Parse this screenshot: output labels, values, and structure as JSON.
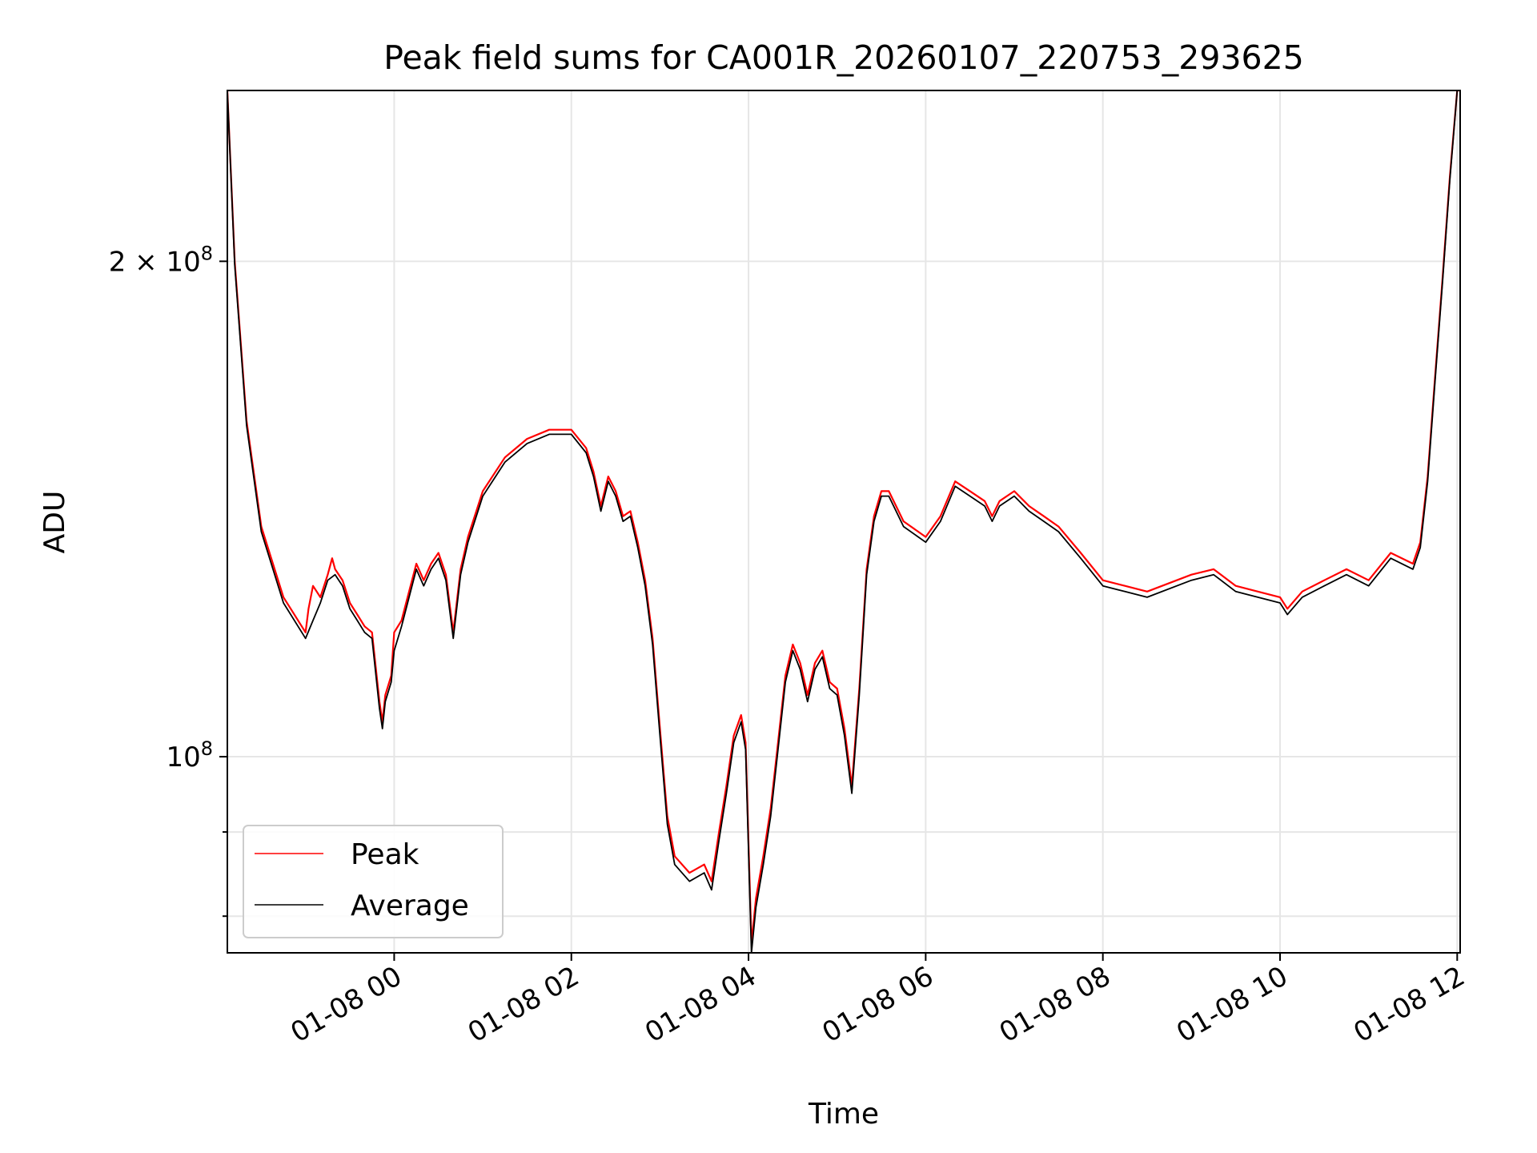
{
  "chart_data": {
    "type": "line",
    "title": "Peak field sums for CA001R_20260107_220753_293625",
    "xlabel": "Time",
    "ylabel": "ADU",
    "yscale": "log",
    "grid": true,
    "legend_placement": "lower-left",
    "xlim": [
      "2026-01-07 22:07",
      "2026-01-08 12:02"
    ],
    "ylim": [
      76000000,
      254000000
    ],
    "x_ticks": [
      {
        "value": "2026-01-08 00:00",
        "label": "01-08 00"
      },
      {
        "value": "2026-01-08 02:00",
        "label": "01-08 02"
      },
      {
        "value": "2026-01-08 04:00",
        "label": "01-08 04"
      },
      {
        "value": "2026-01-08 06:00",
        "label": "01-08 06"
      },
      {
        "value": "2026-01-08 08:00",
        "label": "01-08 08"
      },
      {
        "value": "2026-01-08 10:00",
        "label": "01-08 10"
      },
      {
        "value": "2026-01-08 12:00",
        "label": "01-08 12"
      }
    ],
    "y_major_ticks": [
      {
        "value": 200000000,
        "label_base": "2 × 10",
        "label_exp": "8"
      },
      {
        "value": 100000000,
        "label_base": "10",
        "label_exp": "8"
      }
    ],
    "y_minor_ticks": [
      90000000,
      80000000
    ],
    "series": [
      {
        "name": "Peak",
        "color": "#ff0000",
        "x": [
          "2026-01-07 22:07",
          "2026-01-07 22:12",
          "2026-01-07 22:20",
          "2026-01-07 22:30",
          "2026-01-07 22:45",
          "2026-01-07 23:00",
          "2026-01-07 23:02",
          "2026-01-07 23:05",
          "2026-01-07 23:10",
          "2026-01-07 23:15",
          "2026-01-07 23:18",
          "2026-01-07 23:20",
          "2026-01-07 23:25",
          "2026-01-07 23:30",
          "2026-01-07 23:35",
          "2026-01-07 23:40",
          "2026-01-07 23:45",
          "2026-01-07 23:50",
          "2026-01-07 23:52",
          "2026-01-07 23:54",
          "2026-01-07 23:58",
          "2026-01-08 00:00",
          "2026-01-08 00:05",
          "2026-01-08 00:15",
          "2026-01-08 00:20",
          "2026-01-08 00:25",
          "2026-01-08 00:30",
          "2026-01-08 00:35",
          "2026-01-08 00:40",
          "2026-01-08 00:45",
          "2026-01-08 00:50",
          "2026-01-08 01:00",
          "2026-01-08 01:15",
          "2026-01-08 01:30",
          "2026-01-08 01:45",
          "2026-01-08 02:00",
          "2026-01-08 02:10",
          "2026-01-08 02:15",
          "2026-01-08 02:20",
          "2026-01-08 02:25",
          "2026-01-08 02:30",
          "2026-01-08 02:35",
          "2026-01-08 02:40",
          "2026-01-08 02:45",
          "2026-01-08 02:50",
          "2026-01-08 02:55",
          "2026-01-08 03:00",
          "2026-01-08 03:05",
          "2026-01-08 03:10",
          "2026-01-08 03:20",
          "2026-01-08 03:30",
          "2026-01-08 03:35",
          "2026-01-08 03:40",
          "2026-01-08 03:45",
          "2026-01-08 03:50",
          "2026-01-08 03:55",
          "2026-01-08 03:58",
          "2026-01-08 04:02",
          "2026-01-08 04:05",
          "2026-01-08 04:10",
          "2026-01-08 04:15",
          "2026-01-08 04:20",
          "2026-01-08 04:25",
          "2026-01-08 04:30",
          "2026-01-08 04:35",
          "2026-01-08 04:40",
          "2026-01-08 04:45",
          "2026-01-08 04:50",
          "2026-01-08 04:55",
          "2026-01-08 05:00",
          "2026-01-08 05:05",
          "2026-01-08 05:10",
          "2026-01-08 05:15",
          "2026-01-08 05:20",
          "2026-01-08 05:25",
          "2026-01-08 05:30",
          "2026-01-08 05:35",
          "2026-01-08 05:45",
          "2026-01-08 06:00",
          "2026-01-08 06:10",
          "2026-01-08 06:20",
          "2026-01-08 06:30",
          "2026-01-08 06:40",
          "2026-01-08 06:45",
          "2026-01-08 06:50",
          "2026-01-08 07:00",
          "2026-01-08 07:10",
          "2026-01-08 07:20",
          "2026-01-08 07:30",
          "2026-01-08 07:45",
          "2026-01-08 08:00",
          "2026-01-08 08:15",
          "2026-01-08 08:30",
          "2026-01-08 09:00",
          "2026-01-08 09:15",
          "2026-01-08 09:30",
          "2026-01-08 09:45",
          "2026-01-08 10:00",
          "2026-01-08 10:05",
          "2026-01-08 10:15",
          "2026-01-08 10:30",
          "2026-01-08 10:45",
          "2026-01-08 11:00",
          "2026-01-08 11:15",
          "2026-01-08 11:30",
          "2026-01-08 11:35",
          "2026-01-08 11:40",
          "2026-01-08 11:45",
          "2026-01-08 11:50",
          "2026-01-08 11:55",
          "2026-01-08 12:00",
          "2026-01-08 12:02"
        ],
        "values": [
          254000000,
          200000000,
          160000000,
          138000000,
          125000000,
          119000000,
          123000000,
          127000000,
          125000000,
          129000000,
          132000000,
          130000000,
          128000000,
          124000000,
          122000000,
          120000000,
          119000000,
          108000000,
          105000000,
          109000000,
          112000000,
          119000000,
          121000000,
          131000000,
          128000000,
          131000000,
          133000000,
          129000000,
          119000000,
          130000000,
          136000000,
          145000000,
          152000000,
          156000000,
          158000000,
          158000000,
          154000000,
          149000000,
          142000000,
          148000000,
          145000000,
          140000000,
          141000000,
          135000000,
          128000000,
          118000000,
          104000000,
          92000000,
          87000000,
          85000000,
          86000000,
          84000000,
          90000000,
          96000000,
          103000000,
          106000000,
          102000000,
          77000000,
          82000000,
          87000000,
          93000000,
          102000000,
          112000000,
          117000000,
          114000000,
          109000000,
          114000000,
          116000000,
          111000000,
          110000000,
          104000000,
          96000000,
          110000000,
          130000000,
          140000000,
          145000000,
          145000000,
          139000000,
          136000000,
          140000000,
          147000000,
          145000000,
          143000000,
          140000000,
          143000000,
          145000000,
          142000000,
          140000000,
          138000000,
          133000000,
          128000000,
          127000000,
          126000000,
          129000000,
          130000000,
          127000000,
          126000000,
          125000000,
          123000000,
          126000000,
          128000000,
          130000000,
          128000000,
          133000000,
          131000000,
          135000000,
          148000000,
          170000000,
          195000000,
          225000000,
          254000000,
          254000000
        ]
      },
      {
        "name": "Average",
        "color": "#000000",
        "x": [
          "2026-01-07 22:07",
          "2026-01-07 22:12",
          "2026-01-07 22:20",
          "2026-01-07 22:30",
          "2026-01-07 22:45",
          "2026-01-07 23:00",
          "2026-01-07 23:05",
          "2026-01-07 23:10",
          "2026-01-07 23:15",
          "2026-01-07 23:20",
          "2026-01-07 23:25",
          "2026-01-07 23:30",
          "2026-01-07 23:35",
          "2026-01-07 23:40",
          "2026-01-07 23:45",
          "2026-01-07 23:50",
          "2026-01-07 23:52",
          "2026-01-07 23:54",
          "2026-01-07 23:58",
          "2026-01-08 00:00",
          "2026-01-08 00:05",
          "2026-01-08 00:15",
          "2026-01-08 00:20",
          "2026-01-08 00:25",
          "2026-01-08 00:30",
          "2026-01-08 00:35",
          "2026-01-08 00:40",
          "2026-01-08 00:45",
          "2026-01-08 00:50",
          "2026-01-08 01:00",
          "2026-01-08 01:15",
          "2026-01-08 01:30",
          "2026-01-08 01:45",
          "2026-01-08 02:00",
          "2026-01-08 02:10",
          "2026-01-08 02:15",
          "2026-01-08 02:20",
          "2026-01-08 02:25",
          "2026-01-08 02:30",
          "2026-01-08 02:35",
          "2026-01-08 02:40",
          "2026-01-08 02:45",
          "2026-01-08 02:50",
          "2026-01-08 02:55",
          "2026-01-08 03:00",
          "2026-01-08 03:05",
          "2026-01-08 03:10",
          "2026-01-08 03:20",
          "2026-01-08 03:30",
          "2026-01-08 03:35",
          "2026-01-08 03:40",
          "2026-01-08 03:45",
          "2026-01-08 03:50",
          "2026-01-08 03:55",
          "2026-01-08 03:58",
          "2026-01-08 04:02",
          "2026-01-08 04:05",
          "2026-01-08 04:10",
          "2026-01-08 04:15",
          "2026-01-08 04:20",
          "2026-01-08 04:25",
          "2026-01-08 04:30",
          "2026-01-08 04:35",
          "2026-01-08 04:40",
          "2026-01-08 04:45",
          "2026-01-08 04:50",
          "2026-01-08 04:55",
          "2026-01-08 05:00",
          "2026-01-08 05:05",
          "2026-01-08 05:10",
          "2026-01-08 05:15",
          "2026-01-08 05:20",
          "2026-01-08 05:25",
          "2026-01-08 05:30",
          "2026-01-08 05:35",
          "2026-01-08 05:45",
          "2026-01-08 06:00",
          "2026-01-08 06:10",
          "2026-01-08 06:20",
          "2026-01-08 06:30",
          "2026-01-08 06:40",
          "2026-01-08 06:45",
          "2026-01-08 06:50",
          "2026-01-08 07:00",
          "2026-01-08 07:10",
          "2026-01-08 07:20",
          "2026-01-08 07:30",
          "2026-01-08 07:45",
          "2026-01-08 08:00",
          "2026-01-08 08:15",
          "2026-01-08 08:30",
          "2026-01-08 09:00",
          "2026-01-08 09:15",
          "2026-01-08 09:30",
          "2026-01-08 09:45",
          "2026-01-08 10:00",
          "2026-01-08 10:05",
          "2026-01-08 10:15",
          "2026-01-08 10:30",
          "2026-01-08 10:45",
          "2026-01-08 11:00",
          "2026-01-08 11:15",
          "2026-01-08 11:30",
          "2026-01-08 11:35",
          "2026-01-08 11:40",
          "2026-01-08 11:45",
          "2026-01-08 11:50",
          "2026-01-08 11:55",
          "2026-01-08 12:00",
          "2026-01-08 12:02"
        ],
        "values": [
          254000000,
          199000000,
          159000000,
          137000000,
          124000000,
          118000000,
          121000000,
          124000000,
          128000000,
          129000000,
          127000000,
          123000000,
          121000000,
          119000000,
          118000000,
          107000000,
          104000000,
          108000000,
          111000000,
          116000000,
          120000000,
          130000000,
          127000000,
          130000000,
          132000000,
          128000000,
          118000000,
          129000000,
          135000000,
          144000000,
          151000000,
          155000000,
          157000000,
          157000000,
          153000000,
          148000000,
          141000000,
          147000000,
          144000000,
          139000000,
          140000000,
          134000000,
          127000000,
          117000000,
          103000000,
          91000000,
          86000000,
          84000000,
          85000000,
          83000000,
          89000000,
          95000000,
          102000000,
          105000000,
          101000000,
          76000000,
          81000000,
          86000000,
          92000000,
          101000000,
          111000000,
          116000000,
          113000000,
          108000000,
          113000000,
          115000000,
          110000000,
          109000000,
          103000000,
          95000000,
          109000000,
          129000000,
          139000000,
          144000000,
          144000000,
          138000000,
          135000000,
          139000000,
          146000000,
          144000000,
          142000000,
          139000000,
          142000000,
          144000000,
          141000000,
          139000000,
          137000000,
          132000000,
          127000000,
          126000000,
          125000000,
          128000000,
          129000000,
          126000000,
          125000000,
          124000000,
          122000000,
          125000000,
          127000000,
          129000000,
          127000000,
          132000000,
          130000000,
          134000000,
          147000000,
          169000000,
          194000000,
          224000000,
          254000000,
          254000000
        ]
      }
    ]
  }
}
